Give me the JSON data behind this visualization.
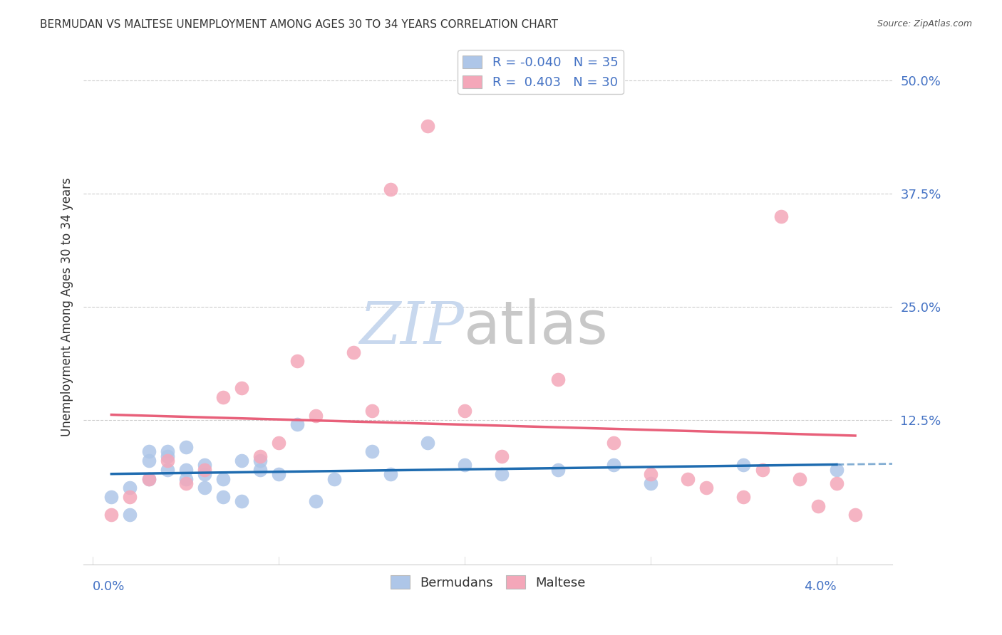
{
  "title": "BERMUDAN VS MALTESE UNEMPLOYMENT AMONG AGES 30 TO 34 YEARS CORRELATION CHART",
  "source": "Source: ZipAtlas.com",
  "ylabel": "Unemployment Among Ages 30 to 34 years",
  "xlim": [
    -0.0005,
    0.043
  ],
  "ylim": [
    -0.035,
    0.535
  ],
  "bermudans_R": "-0.040",
  "bermudans_N": "35",
  "maltese_R": "0.403",
  "maltese_N": "30",
  "bermudans_color": "#aec6e8",
  "maltese_color": "#f4a7b9",
  "trendline_bermudans_color": "#1f6cb0",
  "trendline_maltese_color": "#e8607a",
  "background_color": "#ffffff",
  "grid_color": "#cccccc",
  "title_color": "#333333",
  "axis_label_color": "#4472c4",
  "legend_text_color": "#4472c4",
  "bermudans_x": [
    0.001,
    0.002,
    0.002,
    0.003,
    0.003,
    0.003,
    0.004,
    0.004,
    0.004,
    0.005,
    0.005,
    0.005,
    0.006,
    0.006,
    0.006,
    0.007,
    0.007,
    0.008,
    0.008,
    0.009,
    0.009,
    0.01,
    0.011,
    0.012,
    0.013,
    0.015,
    0.016,
    0.018,
    0.02,
    0.022,
    0.025,
    0.028,
    0.03,
    0.035,
    0.04
  ],
  "bermudans_y": [
    0.04,
    0.02,
    0.05,
    0.06,
    0.08,
    0.09,
    0.07,
    0.085,
    0.09,
    0.06,
    0.07,
    0.095,
    0.05,
    0.065,
    0.075,
    0.04,
    0.06,
    0.08,
    0.035,
    0.07,
    0.08,
    0.065,
    0.12,
    0.035,
    0.06,
    0.09,
    0.065,
    0.1,
    0.075,
    0.065,
    0.07,
    0.075,
    0.055,
    0.075,
    0.07
  ],
  "maltese_x": [
    0.001,
    0.002,
    0.003,
    0.004,
    0.005,
    0.006,
    0.007,
    0.008,
    0.009,
    0.01,
    0.011,
    0.012,
    0.014,
    0.015,
    0.016,
    0.018,
    0.02,
    0.022,
    0.025,
    0.028,
    0.03,
    0.032,
    0.033,
    0.035,
    0.036,
    0.037,
    0.038,
    0.039,
    0.04,
    0.041
  ],
  "maltese_y": [
    0.02,
    0.04,
    0.06,
    0.08,
    0.055,
    0.07,
    0.15,
    0.16,
    0.085,
    0.1,
    0.19,
    0.13,
    0.2,
    0.135,
    0.38,
    0.45,
    0.135,
    0.085,
    0.17,
    0.1,
    0.065,
    0.06,
    0.05,
    0.04,
    0.07,
    0.35,
    0.06,
    0.03,
    0.055,
    0.02
  ],
  "watermark_zip": "ZIP",
  "watermark_atlas": "atlas",
  "watermark_color_zip": "#c8d8ee",
  "watermark_color_atlas": "#c8c8c8"
}
